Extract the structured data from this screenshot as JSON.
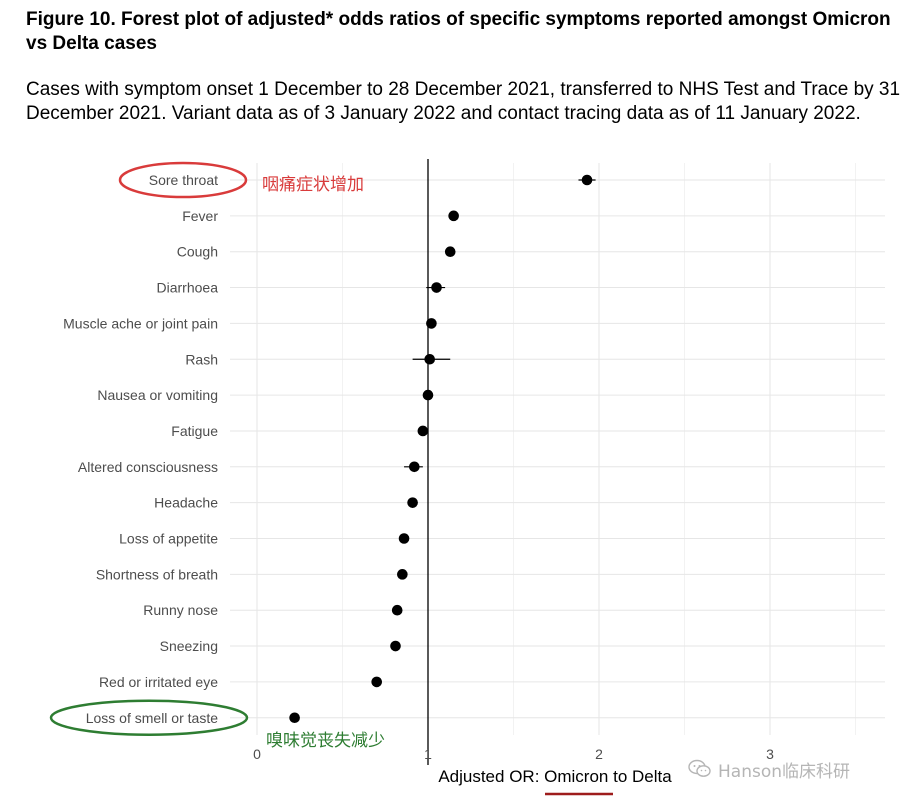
{
  "figure": {
    "title": "Figure 10. Forest plot of adjusted* odds ratios of specific symptoms reported amongst Omicron vs Delta cases",
    "subtitle": "Cases with symptom onset 1 December to 28 December 2021, transferred to NHS Test and Trace by 31 December 2021. Variant data as of 3 January 2022 and contact tracing data as of 11 January 2022."
  },
  "chart_data": {
    "type": "scatter",
    "xlabel": "Adjusted OR: Omicron to Delta",
    "xlim": [
      0,
      3.7
    ],
    "xticks": [
      0,
      1,
      2,
      3
    ],
    "reference_line": 1,
    "grid": true,
    "categories": [
      "Sore throat",
      "Fever",
      "Cough",
      "Diarrhoea",
      "Muscle ache or joint pain",
      "Rash",
      "Nausea or vomiting",
      "Fatigue",
      "Altered consciousness",
      "Headache",
      "Loss of appetite",
      "Shortness of breath",
      "Runny nose",
      "Sneezing",
      "Red or irritated eye",
      "Loss of smell or taste"
    ],
    "series": [
      {
        "values": [
          1.93,
          1.15,
          1.13,
          1.05,
          1.02,
          1.01,
          1.0,
          0.97,
          0.92,
          0.91,
          0.86,
          0.85,
          0.82,
          0.81,
          0.7,
          0.22
        ],
        "ci_low": [
          1.88,
          1.13,
          1.11,
          0.99,
          1.0,
          0.91,
          0.98,
          0.95,
          0.86,
          0.89,
          0.84,
          0.83,
          0.8,
          0.79,
          0.67,
          0.2
        ],
        "ci_high": [
          1.98,
          1.17,
          1.15,
          1.1,
          1.04,
          1.13,
          1.02,
          0.99,
          0.97,
          0.93,
          0.88,
          0.87,
          0.84,
          0.83,
          0.73,
          0.24
        ]
      }
    ],
    "annotations": [
      {
        "text": "咽痛症状增加",
        "category": "Sore throat",
        "color": "#d93b3b"
      },
      {
        "text": "嗅味觉丧失减少",
        "category": "Loss of smell or taste",
        "color": "#2e7d32"
      }
    ]
  },
  "watermark": {
    "text": "Hanson临床科研",
    "icon": "wechat-icon"
  }
}
